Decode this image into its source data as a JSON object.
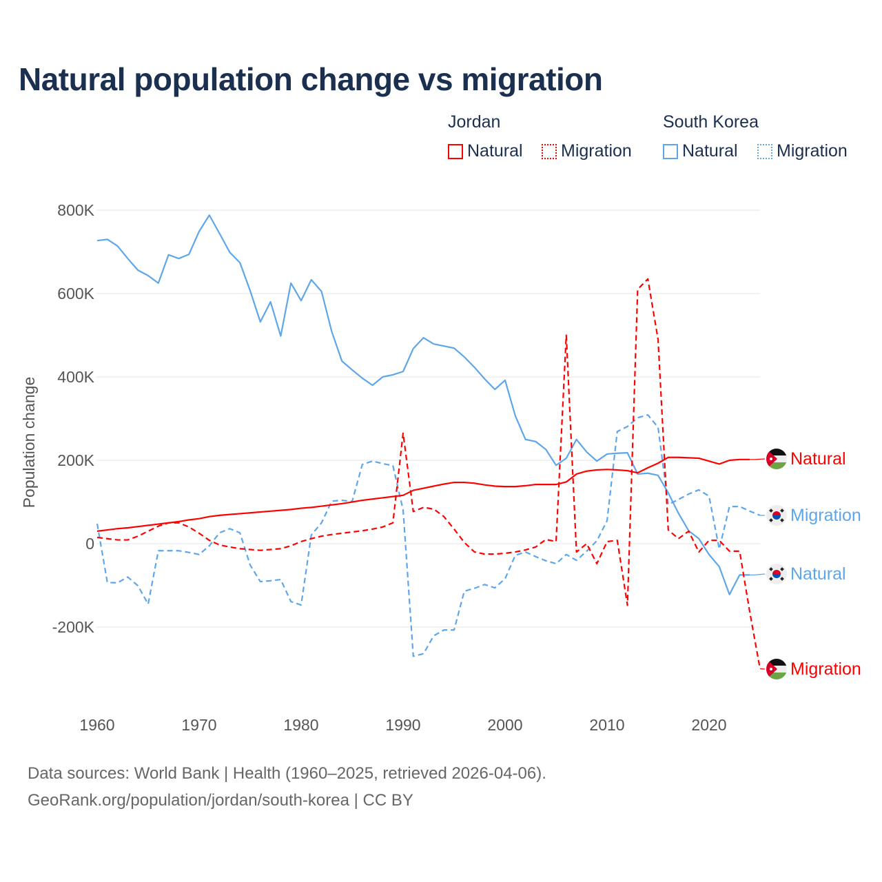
{
  "title": "Natural population change vs migration",
  "legend": {
    "groups": [
      {
        "name": "Jordan",
        "items": [
          {
            "label": "Natural",
            "style": "solid"
          },
          {
            "label": "Migration",
            "style": "dotted"
          }
        ],
        "color": "#ff0000"
      },
      {
        "name": "South Korea",
        "items": [
          {
            "label": "Natural",
            "style": "solid"
          },
          {
            "label": "Migration",
            "style": "dotted"
          }
        ],
        "color": "#5ea6ea"
      }
    ]
  },
  "source": {
    "line1": "Data sources: World Bank | Health (1960–2025, retrieved 2026-04-06).",
    "line2": "GeoRank.org/population/jordan/south-korea | CC BY"
  },
  "chart_data": {
    "type": "line",
    "title": "Natural population change vs migration",
    "xlabel": "",
    "ylabel": "Population change",
    "xlim": [
      1960,
      2025
    ],
    "ylim": [
      -300000,
      800000
    ],
    "xticks": [
      1960,
      1970,
      1980,
      1990,
      2000,
      2010,
      2020
    ],
    "xtick_labels": [
      "1960",
      "1970",
      "1980",
      "1990",
      "2000",
      "2010",
      "2020"
    ],
    "yticks": [
      -200000,
      0,
      200000,
      400000,
      600000,
      800000
    ],
    "ytick_labels": [
      "-200K",
      "0",
      "200K",
      "400K",
      "600K",
      "800K"
    ],
    "grid": true,
    "legend_placement": "top-right",
    "series": [
      {
        "name": "South Korea Natural",
        "end_label": "Natural",
        "country": "kr",
        "color": "#5ea6ea",
        "dash": false,
        "start": 1960,
        "values": [
          727,
          730,
          714,
          684,
          656,
          643,
          625,
          693,
          684,
          694,
          749,
          788,
          744,
          699,
          674,
          607,
          532,
          580,
          498,
          625,
          583,
          633,
          605,
          509,
          438,
          417,
          397,
          380,
          400,
          405,
          413,
          468,
          494,
          479,
          474,
          469,
          448,
          423,
          395,
          370,
          392,
          307,
          250,
          245,
          226,
          188,
          205,
          250,
          220,
          198,
          215,
          217,
          218,
          167,
          169,
          164,
          122,
          73,
          31,
          12,
          -26,
          -55,
          -122,
          -75,
          -75
        ]
      },
      {
        "name": "South Korea Migration",
        "end_label": "Migration",
        "country": "kr",
        "color": "#5ea6ea",
        "dash": true,
        "start": 1960,
        "values": [
          48,
          -93,
          -94,
          -80,
          -101,
          -145,
          -17,
          -17,
          -17,
          -21,
          -26,
          -5,
          26,
          36,
          26,
          -51,
          -91,
          -89,
          -86,
          -139,
          -147,
          21,
          50,
          102,
          104,
          101,
          190,
          198,
          192,
          187,
          81,
          -270,
          -264,
          -221,
          -207,
          -207,
          -114,
          -107,
          -98,
          -106,
          -84,
          -28,
          -20,
          -31,
          -41,
          -48,
          -26,
          -40,
          -18,
          7,
          55,
          269,
          281,
          302,
          309,
          279,
          94,
          106,
          119,
          129,
          114,
          -13,
          89,
          89,
          78,
          68
        ]
      },
      {
        "name": "Jordan Natural",
        "end_label": "Natural",
        "country": "jo",
        "color": "#ff0000",
        "dash": false,
        "start": 1960,
        "values": [
          30,
          33,
          36,
          38,
          41,
          44,
          47,
          50,
          53,
          57,
          60,
          65,
          68,
          70,
          72,
          74,
          76,
          78,
          80,
          82,
          85,
          87,
          90,
          93,
          96,
          100,
          104,
          107,
          110,
          113,
          116,
          128,
          133,
          138,
          143,
          147,
          147,
          145,
          141,
          138,
          137,
          137,
          139,
          142,
          142,
          142,
          148,
          167,
          174,
          177,
          178,
          177,
          175,
          170,
          182,
          193,
          207,
          207,
          206,
          205,
          198,
          191,
          200,
          202,
          202
        ]
      },
      {
        "name": "Jordan Migration",
        "end_label": "Migration",
        "country": "jo",
        "color": "#ff0000",
        "dash": true,
        "start": 1960,
        "values": [
          15,
          12,
          9,
          9,
          18,
          30,
          42,
          50,
          50,
          40,
          25,
          8,
          -3,
          -8,
          -12,
          -14,
          -16,
          -14,
          -12,
          -5,
          5,
          12,
          18,
          22,
          25,
          28,
          31,
          35,
          40,
          50,
          265,
          77,
          87,
          83,
          65,
          35,
          3,
          -20,
          -25,
          -25,
          -23,
          -20,
          -15,
          -8,
          10,
          5,
          500,
          -20,
          0,
          -48,
          5,
          8,
          -148,
          610,
          635,
          490,
          33,
          12,
          30,
          -20,
          8,
          8,
          -18,
          -18,
          -165,
          -300
        ]
      }
    ],
    "value_unit": "thousands"
  }
}
